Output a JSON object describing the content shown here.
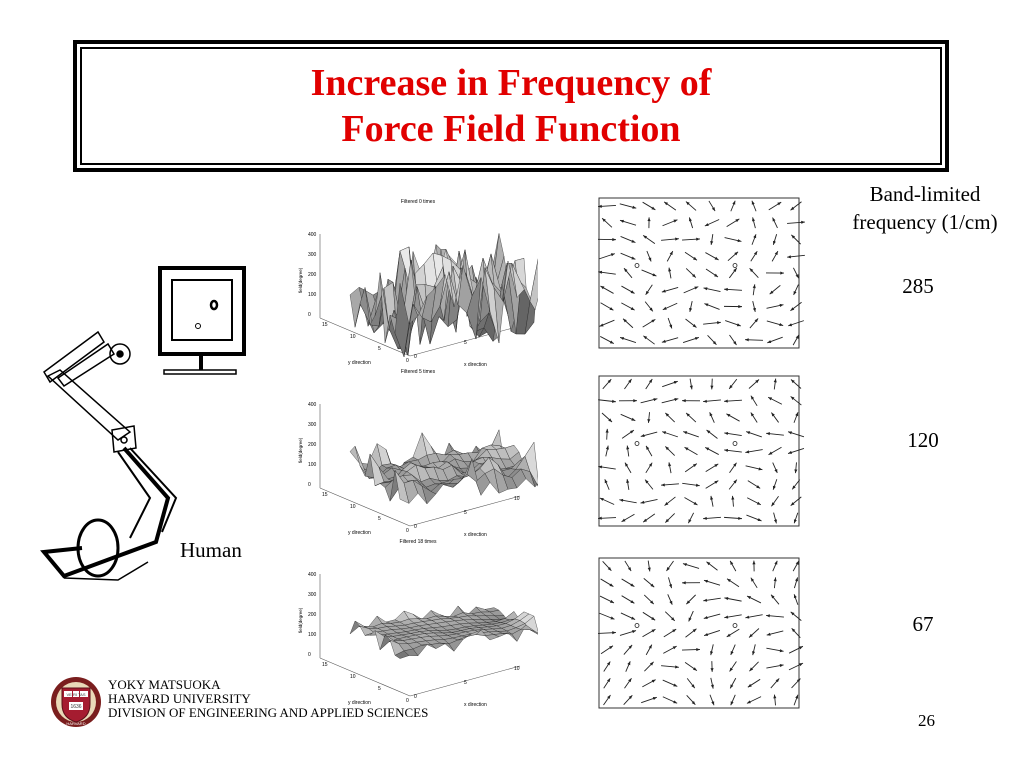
{
  "slide": {
    "title_line1": "Increase in Frequency of",
    "title_line2": "Force Field Function",
    "header_label_line1": "Band-limited",
    "header_label_line2": "frequency (1/cm)",
    "frequencies": [
      "285",
      "120",
      "67"
    ],
    "human_label": "Human",
    "page_number": "26"
  },
  "footer": {
    "line1": "YOKY MATSUOKA",
    "line2": "HARVARD UNIVERSITY",
    "line3": "DIVISION OF ENGINEERING AND APPLIED SCIENCES"
  },
  "surface_plots": [
    {
      "title": "Filtered 0 times",
      "ylabel": "field(degree)",
      "yaxis": "y direction",
      "xaxis": "x direction",
      "zticks": [
        "400",
        "300",
        "200",
        "100",
        "0"
      ],
      "yticks": [
        "15",
        "10",
        "5",
        "0"
      ],
      "xticks": [
        "0",
        "5",
        "10"
      ]
    },
    {
      "title": "Filtered 5 times",
      "ylabel": "field(degree)",
      "yaxis": "y direction",
      "xaxis": "x direction",
      "zticks": [
        "400",
        "300",
        "200",
        "100",
        "0"
      ],
      "yticks": [
        "15",
        "10",
        "5",
        "0"
      ],
      "xticks": [
        "0",
        "5",
        "10"
      ]
    },
    {
      "title": "Filtered 18 times",
      "ylabel": "field(degree)",
      "yaxis": "y direction",
      "xaxis": "x direction",
      "zticks": [
        "400",
        "300",
        "200",
        "100",
        "0"
      ],
      "yticks": [
        "15",
        "10",
        "5",
        "0"
      ],
      "xticks": [
        "0",
        "5",
        "10"
      ]
    }
  ],
  "logo": {
    "motto": "VE RI TAS",
    "year": "1636",
    "name": "HARVARD"
  }
}
